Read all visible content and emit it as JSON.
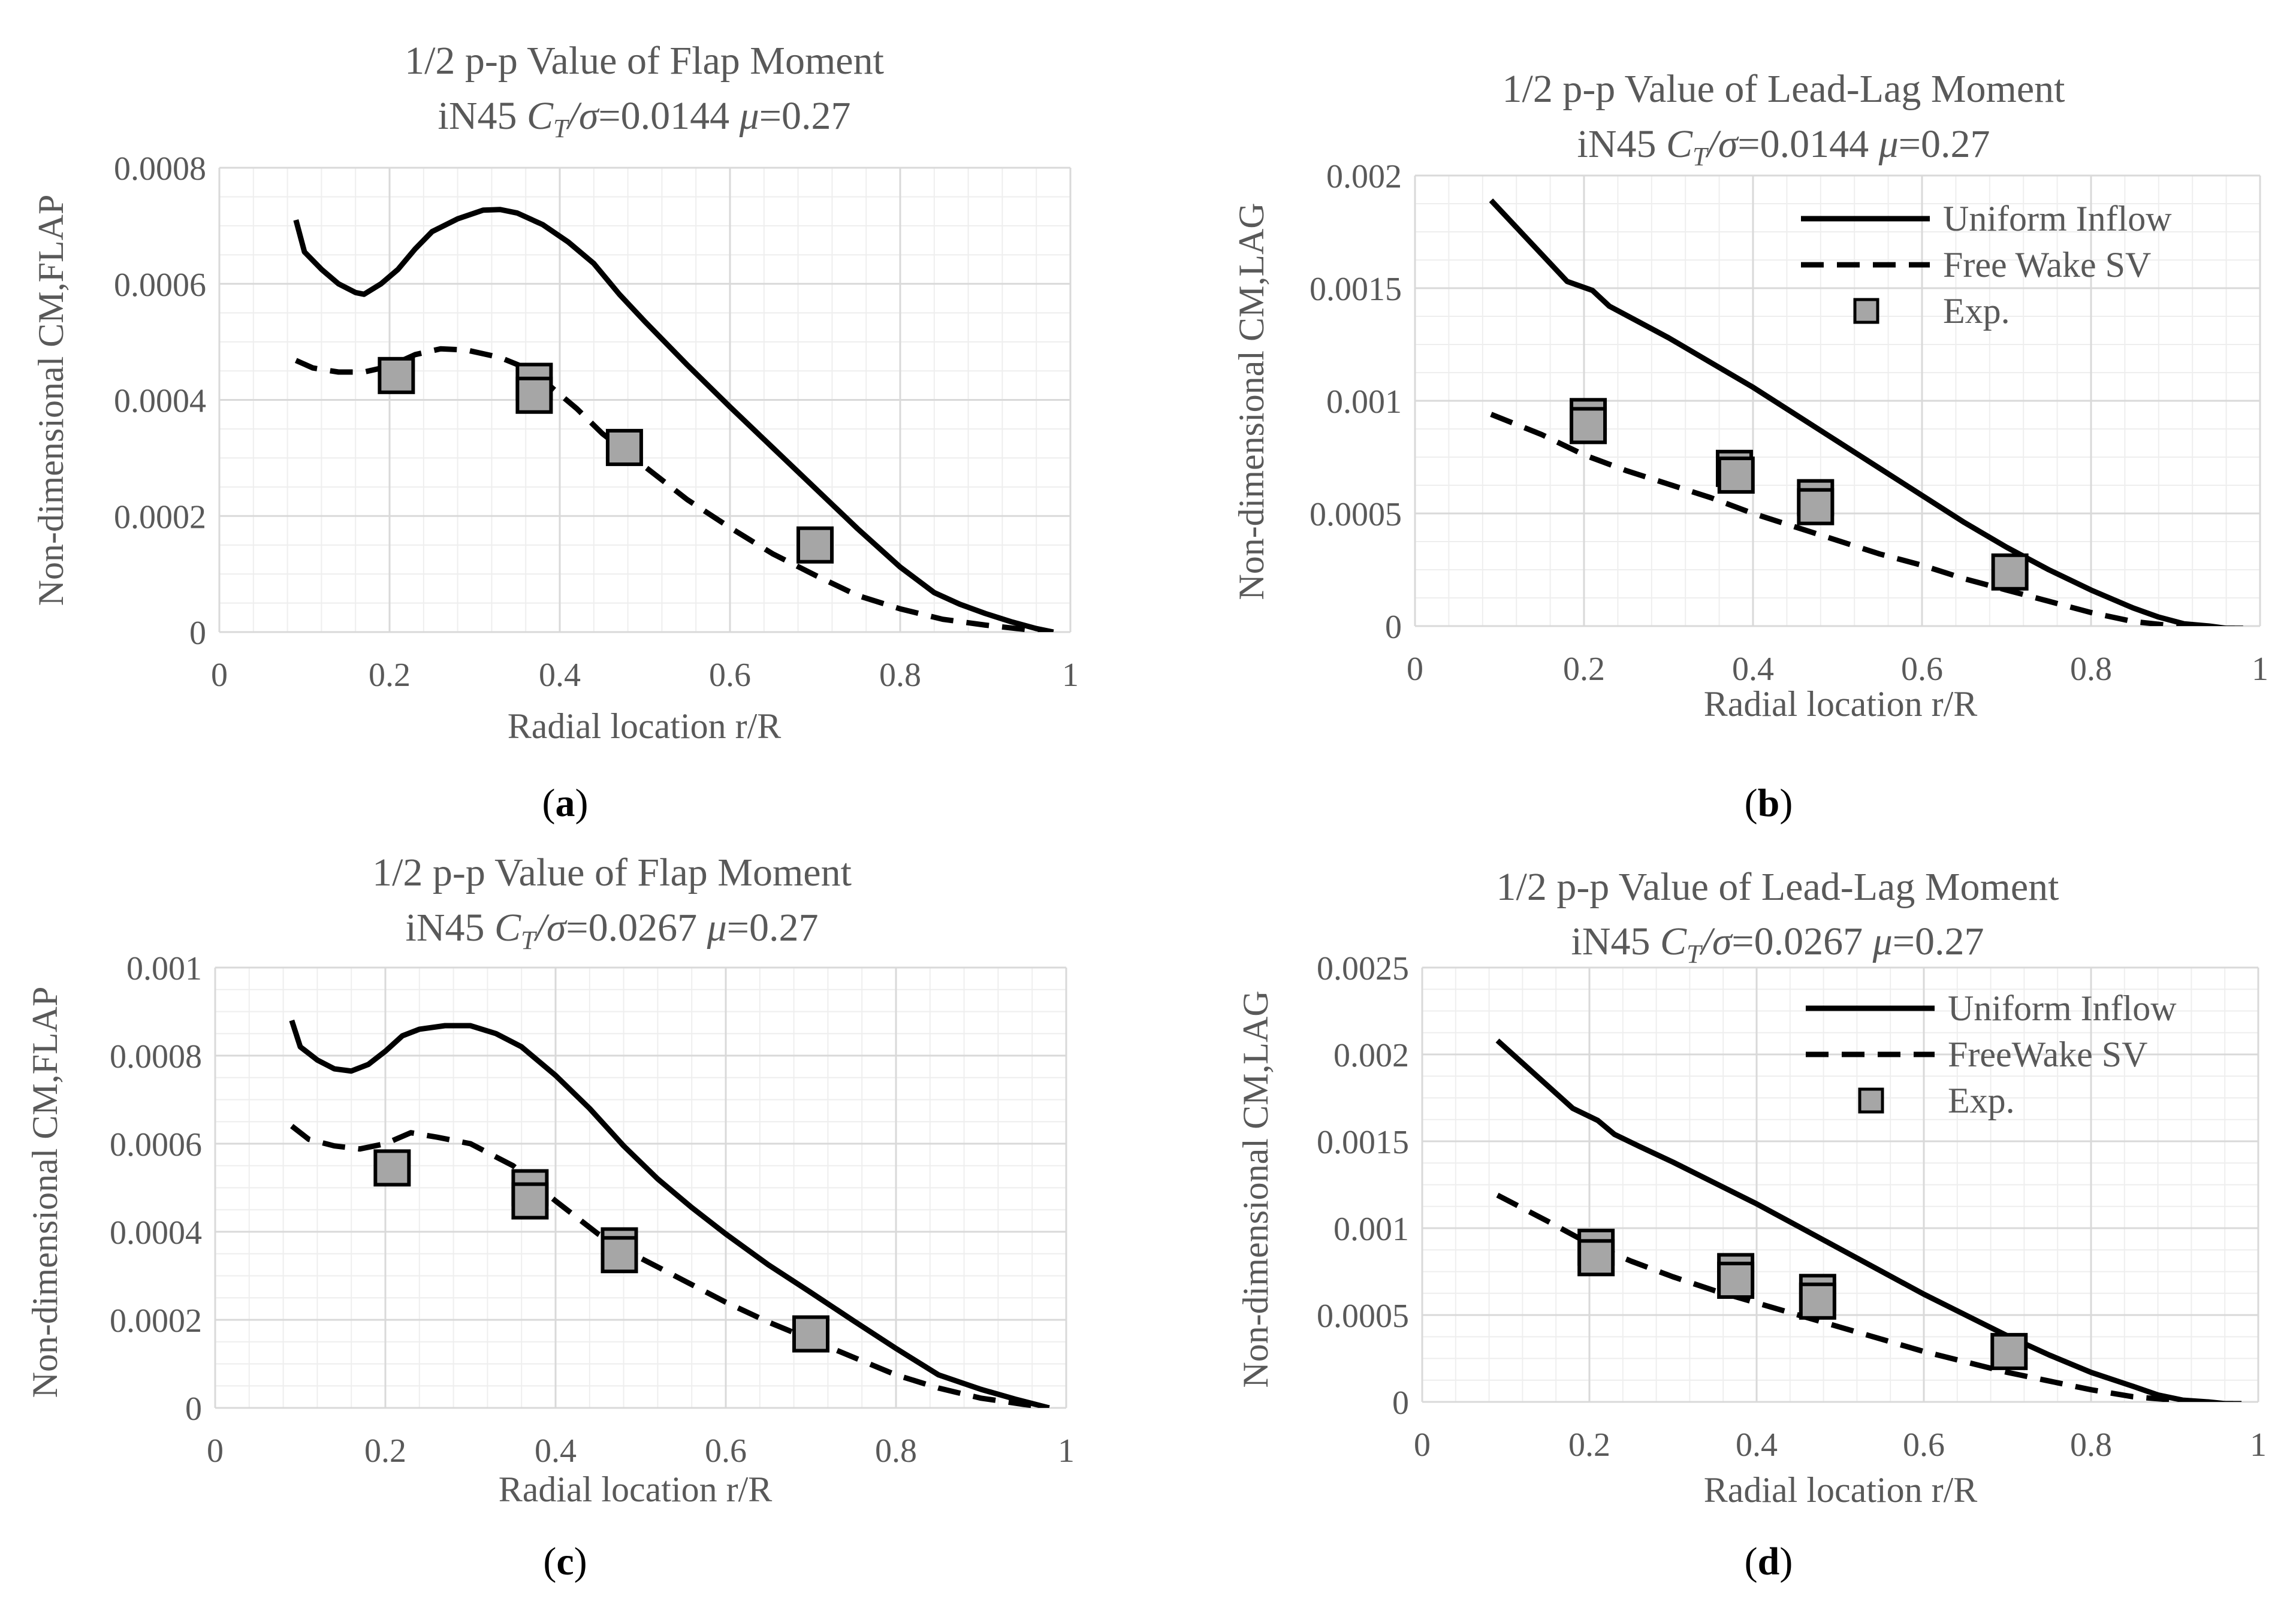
{
  "colors": {
    "line": "#000000",
    "marker_fill": "#a6a6a6",
    "marker_stroke": "#000000",
    "text": "#595959",
    "grid_major": "#d9d9d9",
    "grid_minor": "#eeeeee"
  },
  "chart_data": [
    {
      "type": "line",
      "panel": "a",
      "caption": "a",
      "title_line1": "1/2 p-p Value of Flap Moment",
      "title_line2": {
        "prefix": "iN45 ",
        "ct": "C",
        "ct_sub": "T",
        "sigma": "/σ",
        "ct_value": "=0.0144 ",
        "mu": "μ",
        "mu_value": "=0.27"
      },
      "xlabel": "Radial location r/R",
      "ylabel": "Non-dimensional CM,FLAP",
      "xlim": [
        0,
        1
      ],
      "ylim": [
        0,
        0.0008
      ],
      "x_ticks": [
        "0",
        "0.2",
        "0.4",
        "0.6",
        "0.8",
        "1"
      ],
      "y_ticks": [
        "0",
        "0.0002",
        "0.0004",
        "0.0006",
        "0.0008"
      ],
      "legend": null,
      "series": [
        {
          "name": "Uniform Inflow",
          "style": "solid",
          "x": [
            0.09,
            0.1,
            0.12,
            0.14,
            0.16,
            0.17,
            0.19,
            0.21,
            0.23,
            0.25,
            0.28,
            0.31,
            0.33,
            0.35,
            0.38,
            0.41,
            0.44,
            0.47,
            0.5,
            0.55,
            0.6,
            0.65,
            0.7,
            0.75,
            0.8,
            0.84,
            0.87,
            0.9,
            0.93,
            0.96,
            0.98
          ],
          "y": [
            0.00071,
            0.000655,
            0.000625,
            0.0006,
            0.000585,
            0.000582,
            0.0006,
            0.000625,
            0.00066,
            0.00069,
            0.000712,
            0.000727,
            0.000728,
            0.000722,
            0.000702,
            0.000672,
            0.000635,
            0.000582,
            0.000535,
            0.00046,
            0.000388,
            0.000318,
            0.000248,
            0.000178,
            0.000112,
            6.8e-05,
            4.8e-05,
            3.2e-05,
            1.8e-05,
            6e-06,
            0.0
          ]
        },
        {
          "name": "Free Wake SV",
          "style": "dashed",
          "x": [
            0.09,
            0.11,
            0.14,
            0.17,
            0.2,
            0.23,
            0.26,
            0.29,
            0.33,
            0.36,
            0.39,
            0.42,
            0.45,
            0.5,
            0.55,
            0.6,
            0.65,
            0.7,
            0.75,
            0.8,
            0.85,
            0.9,
            0.95,
            0.98
          ],
          "y": [
            0.000468,
            0.000455,
            0.000448,
            0.000448,
            0.000458,
            0.000478,
            0.000488,
            0.000486,
            0.000473,
            0.000455,
            0.000422,
            0.000385,
            0.000342,
            0.000285,
            0.000228,
            0.00018,
            0.000135,
            9.8e-05,
            6.3e-05,
            4e-05,
            2.2e-05,
            1.2e-05,
            4e-06,
            0.0
          ]
        },
        {
          "name": "Exp.",
          "style": "marker",
          "x": [
            0.208,
            0.37,
            0.37,
            0.476,
            0.7
          ],
          "y": [
            0.000442,
            0.000432,
            0.000408,
            0.000318,
            0.00015
          ]
        }
      ]
    },
    {
      "type": "line",
      "panel": "b",
      "caption": "b",
      "title_line1": "1/2 p-p Value of Lead-Lag Moment",
      "title_line2": {
        "prefix": "iN45 ",
        "ct": "C",
        "ct_sub": "T",
        "sigma": "/σ",
        "ct_value": "=0.0144 ",
        "mu": "μ",
        "mu_value": "=0.27"
      },
      "xlabel": "Radial location r/R",
      "ylabel": "Non-dimensional CM,LAG",
      "xlim": [
        0,
        1
      ],
      "ylim": [
        0,
        0.002
      ],
      "x_ticks": [
        "0",
        "0.2",
        "0.4",
        "0.6",
        "0.8",
        "1"
      ],
      "y_ticks": [
        "0",
        "0.0005",
        "0.001",
        "0.0015",
        "0.002"
      ],
      "legend": [
        "Uniform Inflow",
        "Free Wake SV",
        "Exp."
      ],
      "series": [
        {
          "name": "Uniform Inflow",
          "style": "solid",
          "x": [
            0.09,
            0.12,
            0.15,
            0.18,
            0.21,
            0.23,
            0.26,
            0.3,
            0.35,
            0.4,
            0.45,
            0.5,
            0.55,
            0.6,
            0.65,
            0.7,
            0.75,
            0.8,
            0.85,
            0.88,
            0.91,
            0.94,
            0.96,
            0.98
          ],
          "y": [
            0.00189,
            0.00177,
            0.00165,
            0.00153,
            0.00149,
            0.00142,
            0.00136,
            0.00128,
            0.00117,
            0.00106,
            0.00094,
            0.00082,
            0.0007,
            0.00058,
            0.00046,
            0.00035,
            0.00025,
            0.00016,
            8e-05,
            4e-05,
            1e-05,
            0.0,
            -1e-05,
            -1e-05
          ]
        },
        {
          "name": "Free Wake SV",
          "style": "dashed",
          "x": [
            0.09,
            0.15,
            0.2,
            0.25,
            0.3,
            0.35,
            0.4,
            0.45,
            0.5,
            0.55,
            0.6,
            0.65,
            0.7,
            0.75,
            0.8,
            0.85,
            0.9,
            0.94,
            0.97
          ],
          "y": [
            0.00094,
            0.00085,
            0.00076,
            0.00069,
            0.00063,
            0.00057,
            0.0005,
            0.00044,
            0.00038,
            0.00032,
            0.00027,
            0.00021,
            0.00016,
            0.00011,
            6e-05,
            2e-05,
            0.0,
            -1e-05,
            -1e-05
          ]
        },
        {
          "name": "Exp.",
          "style": "marker",
          "x": [
            0.205,
            0.205,
            0.378,
            0.38,
            0.474,
            0.474,
            0.704
          ],
          "y": [
            0.00093,
            0.00089,
            0.0007,
            0.00067,
            0.00057,
            0.00053,
            0.00024
          ]
        }
      ]
    },
    {
      "type": "line",
      "panel": "c",
      "caption": "c",
      "title_line1": "1/2 p-p Value of Flap Moment",
      "title_line2": {
        "prefix": "iN45 ",
        "ct": "C",
        "ct_sub": "T",
        "sigma": "/σ",
        "ct_value": "=0.0267 ",
        "mu": "μ",
        "mu_value": "=0.27"
      },
      "xlabel": "Radial location r/R",
      "ylabel": "Non-dimensional CM,FLAP",
      "xlim": [
        0,
        1
      ],
      "ylim": [
        0,
        0.001
      ],
      "x_ticks": [
        "0",
        "0.2",
        "0.4",
        "0.6",
        "0.8",
        "1"
      ],
      "y_ticks": [
        "0",
        "0.0002",
        "0.0004",
        "0.0006",
        "0.0008",
        "0.001"
      ],
      "legend": null,
      "series": [
        {
          "name": "Uniform Inflow",
          "style": "solid",
          "x": [
            0.09,
            0.1,
            0.12,
            0.14,
            0.16,
            0.18,
            0.2,
            0.22,
            0.24,
            0.27,
            0.3,
            0.33,
            0.36,
            0.4,
            0.44,
            0.48,
            0.52,
            0.56,
            0.6,
            0.65,
            0.7,
            0.75,
            0.8,
            0.85,
            0.9,
            0.94,
            0.98
          ],
          "y": [
            0.00088,
            0.00082,
            0.00079,
            0.00077,
            0.000765,
            0.00078,
            0.00081,
            0.000845,
            0.00086,
            0.000868,
            0.000868,
            0.00085,
            0.00082,
            0.000755,
            0.00068,
            0.000595,
            0.00052,
            0.000455,
            0.000395,
            0.000325,
            0.000262,
            0.000198,
            0.000135,
            7.5e-05,
            4.2e-05,
            2e-05,
            0.0
          ]
        },
        {
          "name": "Free Wake SV",
          "style": "dashed",
          "x": [
            0.09,
            0.11,
            0.14,
            0.17,
            0.2,
            0.23,
            0.26,
            0.3,
            0.35,
            0.4,
            0.45,
            0.5,
            0.55,
            0.6,
            0.65,
            0.7,
            0.75,
            0.8,
            0.85,
            0.9,
            0.95,
            0.98
          ],
          "y": [
            0.00064,
            0.00061,
            0.000595,
            0.000588,
            0.0006,
            0.000625,
            0.000615,
            0.0006,
            0.00055,
            0.00047,
            0.000395,
            0.00034,
            0.00029,
            0.00024,
            0.000195,
            0.000155,
            0.000115,
            7.5e-05,
            4.5e-05,
            2.2e-05,
            8e-06,
            0.0
          ]
        },
        {
          "name": "Exp.",
          "style": "marker",
          "x": [
            0.208,
            0.37,
            0.37,
            0.475,
            0.475,
            0.7
          ],
          "y": [
            0.000545,
            0.0005,
            0.00047,
            0.000368,
            0.000348,
            0.000168
          ]
        }
      ]
    },
    {
      "type": "line",
      "panel": "d",
      "caption": "d",
      "title_line1": "1/2 p-p Value of Lead-Lag Moment",
      "title_line2": {
        "prefix": "iN45 ",
        "ct": "C",
        "ct_sub": "T",
        "sigma": "/σ",
        "ct_value": "=0.0267 ",
        "mu": "μ",
        "mu_value": "=0.27"
      },
      "xlabel": "Radial location r/R",
      "ylabel": "Non-dimensional CM,LAG",
      "xlim": [
        0,
        1
      ],
      "ylim": [
        0,
        0.0025
      ],
      "x_ticks": [
        "0",
        "0.2",
        "0.4",
        "0.6",
        "0.8",
        "1"
      ],
      "y_ticks": [
        "0",
        "0.0005",
        "0.001",
        "0.0015",
        "0.002",
        "0.0025"
      ],
      "legend": [
        "Uniform Inflow",
        "FreeWake SV",
        "Exp."
      ],
      "series": [
        {
          "name": "Uniform Inflow",
          "style": "solid",
          "x": [
            0.09,
            0.12,
            0.15,
            0.18,
            0.21,
            0.23,
            0.26,
            0.3,
            0.35,
            0.4,
            0.45,
            0.5,
            0.55,
            0.6,
            0.65,
            0.7,
            0.75,
            0.8,
            0.85,
            0.88,
            0.91,
            0.94,
            0.96,
            0.98
          ],
          "y": [
            0.00208,
            0.00195,
            0.00182,
            0.00169,
            0.00162,
            0.00154,
            0.00147,
            0.00138,
            0.00126,
            0.00114,
            0.00101,
            0.00088,
            0.00075,
            0.00062,
            0.0005,
            0.00038,
            0.00027,
            0.00017,
            9e-05,
            4e-05,
            1e-05,
            0.0,
            -1e-05,
            -1e-05
          ]
        },
        {
          "name": "FreeWake SV",
          "style": "dashed",
          "x": [
            0.09,
            0.15,
            0.2,
            0.25,
            0.3,
            0.35,
            0.4,
            0.45,
            0.5,
            0.55,
            0.6,
            0.65,
            0.7,
            0.75,
            0.8,
            0.85,
            0.9,
            0.94,
            0.97
          ],
          "y": [
            0.00119,
            0.00104,
            0.00091,
            0.00081,
            0.00072,
            0.00064,
            0.00057,
            0.0005,
            0.00043,
            0.00036,
            0.00029,
            0.00023,
            0.00017,
            0.00012,
            7e-05,
            3e-05,
            1e-05,
            -1e-05,
            -1e-05
          ]
        },
        {
          "name": "Exp.",
          "style": "marker",
          "x": [
            0.208,
            0.208,
            0.375,
            0.375,
            0.473,
            0.473,
            0.702
          ],
          "y": [
            0.00089,
            0.00083,
            0.00075,
            0.0007,
            0.00063,
            0.00058,
            0.00029
          ]
        }
      ]
    }
  ]
}
